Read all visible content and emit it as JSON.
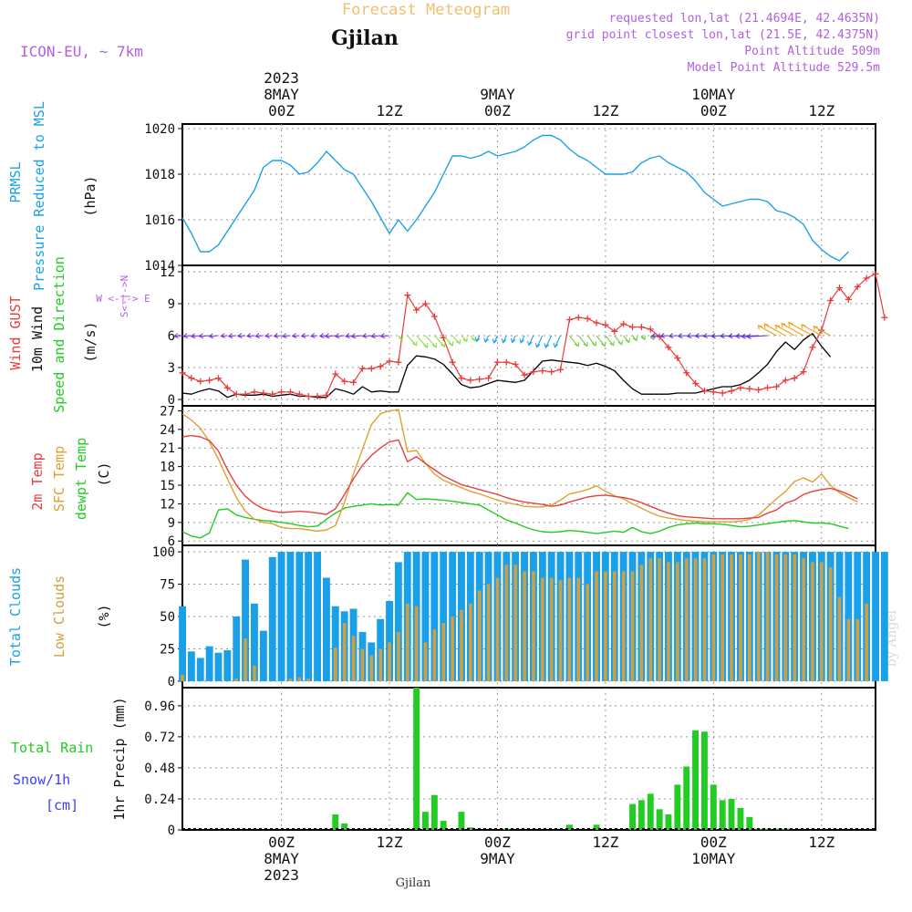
{
  "header": {
    "title": "Forecast Meteogram",
    "location": "Gjilan",
    "model": "ICON-EU, ~ 7km",
    "requested": "requested lon,lat (21.4694E, 42.4635N)",
    "grid_point": "grid point closest lon,lat (21.5E, 42.4375N)",
    "point_altitude": "Point Altitude 509m",
    "model_altitude": "Model Point Altitude 529.5m",
    "footer_location": "Gjilan",
    "watermark": "by Angel"
  },
  "time_axis": {
    "top_ticks": [
      {
        "hour": 0,
        "lines": [
          "2023",
          "8MAY",
          "00Z"
        ]
      },
      {
        "hour": 12,
        "lines": [
          "12Z"
        ]
      },
      {
        "hour": 24,
        "lines": [
          "9MAY",
          "00Z"
        ]
      },
      {
        "hour": 36,
        "lines": [
          "12Z"
        ]
      },
      {
        "hour": 48,
        "lines": [
          "10MAY",
          "00Z"
        ]
      },
      {
        "hour": 60,
        "lines": [
          "12Z"
        ]
      }
    ],
    "bottom_ticks": [
      {
        "hour": 0,
        "lines": [
          "00Z",
          "8MAY",
          "2023"
        ]
      },
      {
        "hour": 12,
        "lines": [
          "12Z"
        ]
      },
      {
        "hour": 24,
        "lines": [
          "00Z",
          "9MAY"
        ]
      },
      {
        "hour": 36,
        "lines": [
          "12Z"
        ]
      },
      {
        "hour": 48,
        "lines": [
          "00Z",
          "10MAY"
        ]
      },
      {
        "hour": 60,
        "lines": [
          "12Z"
        ]
      }
    ]
  },
  "colors": {
    "pressure": "#1aa0e8",
    "gust": "#e83c3c",
    "wind": "#000000",
    "t2m": "#e84040",
    "sfc": "#e0a030",
    "dewpt": "#22cc22",
    "total_clouds": "#1aa0e8",
    "low_clouds": "#d0a040",
    "rain": "#22cc22",
    "snow": "#3c3cff",
    "meta": "#b060e0",
    "title": "#f0c070"
  },
  "panel_labels": {
    "pressure": {
      "left": "PRMSL",
      "middle": "Pressure Reduced to MSL",
      "unit": "(hPa)"
    },
    "wind": {
      "gust": "Wind GUST",
      "wind10": "10m Wind",
      "speed_dir": "Speed and Direction",
      "unit": "(m/s)",
      "compass_ns": "S<-|->N",
      "compass_we": "W <-|-> E"
    },
    "temp": {
      "t2m": "2m Temp",
      "sfc": "SFC Temp",
      "dewpt": "dewpt Temp",
      "unit": "(C)"
    },
    "clouds": {
      "total": "Total Clouds",
      "low": "Low Clouds",
      "unit": "(%)"
    },
    "precip": {
      "rain": "Total  Rain",
      "snow": "Snow/1h",
      "snow_unit": "[cm]",
      "axis": "1hr Precip (mm)"
    }
  },
  "chart_data": [
    {
      "type": "line",
      "name": "pressure",
      "x_start_hour": -11,
      "x_step_hours": 1,
      "xlim": [
        -11,
        66
      ],
      "ylim": [
        1014,
        1020.2
      ],
      "yticks": [
        1014,
        1016,
        1018,
        1020
      ],
      "series": [
        {
          "name": "PRMSL",
          "values": [
            1016.1,
            1015.4,
            1014.6,
            1014.6,
            1014.9,
            1015.5,
            1016.1,
            1016.7,
            1017.3,
            1018.3,
            1018.6,
            1018.6,
            1018.4,
            1018.0,
            1018.1,
            1018.5,
            1019.0,
            1018.6,
            1018.2,
            1018.0,
            1017.4,
            1016.8,
            1016.1,
            1015.4,
            1016.0,
            1015.5,
            1016.0,
            1016.6,
            1017.2,
            1018.0,
            1018.8,
            1018.8,
            1018.7,
            1018.8,
            1019.0,
            1018.8,
            1018.9,
            1019.0,
            1019.2,
            1019.5,
            1019.7,
            1019.7,
            1019.5,
            1019.1,
            1018.8,
            1018.6,
            1018.3,
            1018.0,
            1018.0,
            1018.0,
            1018.1,
            1018.5,
            1018.7,
            1018.8,
            1018.5,
            1018.3,
            1018.1,
            1017.7,
            1017.2,
            1016.9,
            1016.6,
            1016.7,
            1016.8,
            1016.9,
            1016.9,
            1016.8,
            1016.4,
            1016.3,
            1016.1,
            1015.8,
            1015.1,
            1014.7,
            1014.4,
            1014.2,
            1014.6
          ]
        }
      ]
    },
    {
      "type": "line",
      "name": "wind",
      "x_start_hour": -11,
      "x_step_hours": 1,
      "ylim": [
        0,
        12
      ],
      "yticks": [
        0,
        3,
        6,
        9,
        12
      ],
      "series": [
        {
          "name": "Wind GUST",
          "values": [
            2.5,
            2.0,
            1.7,
            1.8,
            2.0,
            1.1,
            0.5,
            0.5,
            0.7,
            0.6,
            0.5,
            0.7,
            0.7,
            0.5,
            0.3,
            0.3,
            0.4,
            2.4,
            1.7,
            1.6,
            2.9,
            2.9,
            3.1,
            3.6,
            3.5,
            9.8,
            8.4,
            9.0,
            7.8,
            5.8,
            3.5,
            2.0,
            1.8,
            1.9,
            2.0,
            3.5,
            3.5,
            3.3,
            2.3,
            2.6,
            2.7,
            2.6,
            2.8,
            7.5,
            7.7,
            7.6,
            7.2,
            7.0,
            6.4,
            7.1,
            6.8,
            6.8,
            6.6,
            5.9,
            4.9,
            3.9,
            2.5,
            1.5,
            0.8,
            0.7,
            0.6,
            0.8,
            1.1,
            1.0,
            0.9,
            1.1,
            1.2,
            1.8,
            2.0,
            2.6,
            4.9,
            6.5,
            9.3,
            10.5,
            9.4,
            10.6,
            11.4,
            11.8,
            7.7
          ]
        },
        {
          "name": "10m Wind",
          "values": [
            0.6,
            0.5,
            0.8,
            1.0,
            0.8,
            0.2,
            0.5,
            0.4,
            0.4,
            0.5,
            0.3,
            0.4,
            0.5,
            0.3,
            0.3,
            0.2,
            0.2,
            1.0,
            0.8,
            0.5,
            1.2,
            0.7,
            0.8,
            0.7,
            0.7,
            3.2,
            4.1,
            4.0,
            3.8,
            3.3,
            2.4,
            1.4,
            1.1,
            1.2,
            1.5,
            1.8,
            1.7,
            1.6,
            1.8,
            2.7,
            3.6,
            3.7,
            3.6,
            3.5,
            3.4,
            3.2,
            3.4,
            3.1,
            2.7,
            1.8,
            1.0,
            0.5,
            0.5,
            0.5,
            0.5,
            0.6,
            0.6,
            0.6,
            0.8,
            1.0,
            1.2,
            1.2,
            1.4,
            1.8,
            2.5,
            3.3,
            4.5,
            5.4,
            4.7,
            5.6,
            6.2,
            5.0,
            4.0
          ]
        }
      ]
    },
    {
      "type": "line",
      "name": "temperature",
      "x_start_hour": -11,
      "x_step_hours": 1,
      "ylim": [
        6,
        27
      ],
      "yticks": [
        6,
        9,
        12,
        15,
        18,
        21,
        24,
        27
      ],
      "series": [
        {
          "name": "2m Temp",
          "values": [
            22.8,
            23.0,
            22.8,
            22.2,
            20.5,
            17.5,
            15.0,
            13.2,
            12.0,
            11.2,
            10.8,
            10.6,
            10.7,
            10.8,
            10.7,
            10.5,
            10.3,
            11.2,
            13.5,
            16.0,
            18.2,
            19.8,
            21.0,
            22.0,
            22.3,
            18.8,
            19.6,
            18.5,
            17.5,
            16.5,
            15.8,
            15.1,
            14.7,
            14.3,
            13.9,
            13.5,
            13.0,
            12.6,
            12.3,
            12.1,
            11.9,
            11.6,
            11.8,
            12.3,
            12.7,
            13.1,
            13.3,
            13.4,
            13.2,
            13.0,
            12.7,
            12.2,
            11.6,
            11.0,
            10.5,
            10.1,
            9.9,
            9.8,
            9.7,
            9.6,
            9.6,
            9.6,
            9.6,
            9.7,
            9.8,
            10.5,
            11.0,
            12.1,
            12.6,
            13.5,
            14.0,
            14.3,
            14.5,
            14.1,
            13.5,
            12.8
          ]
        },
        {
          "name": "SFC Temp",
          "values": [
            26.5,
            25.5,
            24.2,
            22.0,
            19.2,
            16.0,
            13.0,
            10.8,
            9.5,
            9.0,
            8.8,
            8.2,
            8.0,
            8.0,
            7.8,
            7.6,
            7.8,
            8.5,
            12.2,
            16.8,
            20.8,
            24.8,
            26.5,
            27.0,
            27.2,
            20.4,
            20.6,
            18.5,
            16.8,
            15.8,
            15.2,
            14.6,
            14.0,
            13.6,
            13.1,
            12.6,
            12.2,
            11.9,
            11.6,
            11.5,
            11.5,
            11.8,
            12.6,
            13.6,
            13.9,
            14.3,
            14.9,
            14.0,
            13.3,
            12.8,
            12.0,
            11.3,
            10.6,
            10.0,
            9.7,
            9.5,
            9.3,
            9.2,
            9.1,
            9.1,
            9.1,
            9.1,
            9.2,
            9.5,
            10.2,
            11.5,
            12.8,
            14.0,
            15.6,
            16.2,
            15.5,
            16.8,
            15.0,
            13.8,
            13.0,
            12.3
          ]
        },
        {
          "name": "dewpt Temp",
          "values": [
            7.5,
            6.8,
            6.5,
            7.3,
            11.0,
            11.2,
            10.2,
            9.8,
            9.5,
            9.3,
            9.2,
            9.0,
            8.8,
            8.5,
            8.3,
            8.4,
            9.5,
            10.5,
            11.3,
            11.6,
            11.8,
            12.0,
            11.8,
            11.9,
            11.8,
            13.8,
            12.7,
            12.8,
            12.7,
            12.6,
            12.4,
            12.2,
            12.0,
            11.8,
            11.0,
            10.2,
            9.4,
            8.9,
            8.3,
            7.8,
            7.5,
            7.4,
            7.5,
            7.7,
            7.6,
            7.4,
            7.2,
            7.4,
            7.6,
            7.4,
            8.2,
            7.5,
            7.2,
            7.6,
            8.2,
            8.6,
            8.8,
            8.9,
            8.8,
            8.8,
            8.7,
            8.5,
            8.3,
            8.4,
            8.6,
            8.8,
            9.0,
            9.2,
            9.3,
            9.1,
            8.9,
            8.9,
            8.8,
            8.4,
            8.0
          ]
        }
      ]
    },
    {
      "type": "bar",
      "name": "clouds",
      "x_start_hour": -11,
      "x_step_hours": 1,
      "ylim": [
        0,
        100
      ],
      "yticks": [
        0,
        25,
        50,
        75,
        100
      ],
      "series": [
        {
          "name": "Total Clouds",
          "values": [
            58,
            23,
            18,
            27,
            22,
            24,
            50,
            94,
            60,
            39,
            96,
            100,
            100,
            100,
            100,
            100,
            80,
            58,
            54,
            56,
            38,
            30,
            48,
            62,
            92,
            100,
            100,
            100,
            100,
            100,
            100,
            100,
            100,
            100,
            100,
            100,
            100,
            100,
            100,
            100,
            100,
            100,
            100,
            100,
            100,
            100,
            100,
            100,
            100,
            100,
            100,
            100,
            100,
            100,
            100,
            100,
            100,
            100,
            100,
            100,
            100,
            100,
            100,
            100,
            100,
            100,
            100,
            100,
            100,
            100,
            100,
            100,
            100,
            100,
            100,
            100,
            100,
            100,
            100
          ]
        },
        {
          "name": "Low Clouds",
          "values": [
            5,
            0,
            0,
            0,
            0,
            0,
            2,
            33,
            12,
            0,
            0,
            0,
            2,
            3,
            2,
            0,
            0,
            26,
            45,
            35,
            25,
            20,
            25,
            30,
            38,
            60,
            58,
            30,
            40,
            45,
            50,
            55,
            60,
            70,
            75,
            80,
            90,
            90,
            85,
            85,
            80,
            80,
            78,
            80,
            80,
            75,
            85,
            85,
            85,
            85,
            85,
            90,
            95,
            95,
            92,
            92,
            95,
            95,
            95,
            98,
            98,
            98,
            98,
            98,
            100,
            100,
            98,
            98,
            98,
            95,
            92,
            92,
            88,
            65,
            48,
            48,
            60
          ]
        }
      ]
    },
    {
      "type": "bar",
      "name": "precipitation",
      "x_start_hour": -11,
      "x_step_hours": 1,
      "ylim": [
        0,
        1.1
      ],
      "yticks": [
        0,
        0.24,
        0.48,
        0.72,
        0.96
      ],
      "series": [
        {
          "name": "Total Rain",
          "values": [
            0,
            0,
            0,
            0,
            0,
            0,
            0,
            0,
            0,
            0,
            0,
            0,
            0,
            0,
            0,
            0,
            0,
            0.12,
            0.05,
            0,
            0,
            0,
            0,
            0,
            0,
            0,
            1.1,
            0.14,
            0.27,
            0.07,
            0,
            0.14,
            0.02,
            0,
            0,
            0,
            0.01,
            0,
            0,
            0,
            0,
            0,
            0,
            0.04,
            0,
            0,
            0.04,
            0,
            0,
            0,
            0.2,
            0.23,
            0.28,
            0.16,
            0.12,
            0.35,
            0.49,
            0.77,
            0.76,
            0.35,
            0.23,
            0.24,
            0.17,
            0.1,
            0.01,
            0.01,
            0.01,
            0.01,
            0,
            0,
            0,
            0,
            0,
            0,
            0
          ]
        },
        {
          "name": "Snow/1h",
          "values": []
        }
      ]
    }
  ]
}
